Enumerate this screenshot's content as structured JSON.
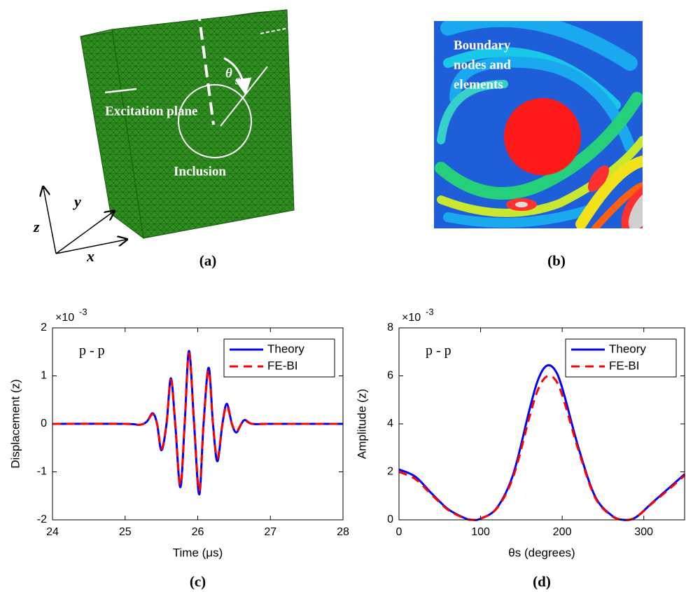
{
  "panel_a": {
    "caption": "(a)",
    "excitation": "Excitation plane",
    "inclusion": "Inclusion",
    "angle": "θ",
    "angle_sub": "s",
    "axis_x": "x",
    "axis_y": "y",
    "axis_z": "z"
  },
  "panel_b": {
    "caption": "(b)",
    "label_1": "Boundary",
    "label_2": "nodes and",
    "label_3": "elements"
  },
  "chart_data": [
    {
      "type": "line",
      "caption": "(c)",
      "annotation": "p - p",
      "exponent_base": "×10",
      "exponent_power": "-3",
      "xlabel": "Time (μs)",
      "ylabel": "Displacement (z)",
      "x": [
        24,
        25,
        25.2,
        25.3,
        25.38,
        25.44,
        25.5,
        25.57,
        25.63,
        25.69,
        25.76,
        25.82,
        25.88,
        25.95,
        26.02,
        26.08,
        26.15,
        26.21,
        26.27,
        26.34,
        26.4,
        26.47,
        26.53,
        26.6,
        26.65,
        26.75,
        27,
        28
      ],
      "series": [
        {
          "name": "Theory",
          "color": "#0000ff",
          "linestyle": "solid",
          "values": [
            0,
            0,
            -0.02,
            0.05,
            0.22,
            0,
            -0.55,
            0,
            0.95,
            0,
            -1.32,
            0,
            1.52,
            0,
            -1.47,
            0,
            1.17,
            0,
            -0.78,
            0,
            0.42,
            0,
            -0.18,
            0,
            0.08,
            0,
            0,
            0
          ]
        },
        {
          "name": "FE-BI",
          "color": "#ff0000",
          "linestyle": "dashed",
          "values": [
            0,
            0,
            -0.02,
            0.05,
            0.2,
            0,
            -0.52,
            0,
            0.92,
            0,
            -1.28,
            0,
            1.47,
            0,
            -1.4,
            0,
            1.12,
            0,
            -0.72,
            0,
            0.38,
            0,
            -0.16,
            0,
            0.07,
            0,
            0,
            0
          ]
        }
      ],
      "xlim": [
        24,
        28
      ],
      "xticks": [
        24,
        25,
        26,
        27,
        28
      ],
      "ylim": [
        -2,
        2
      ],
      "yticks": [
        -2,
        -1,
        0,
        1,
        2
      ],
      "grid": false,
      "legend": "upper right"
    },
    {
      "type": "line",
      "caption": "(d)",
      "annotation": "p - p",
      "exponent_base": "×10",
      "exponent_power": "-3",
      "xlabel": "θs (degrees)",
      "ylabel": "Amplitude (z)",
      "x": [
        0,
        20,
        40,
        60,
        80,
        90,
        100,
        120,
        140,
        160,
        170,
        180,
        190,
        200,
        220,
        240,
        260,
        275,
        290,
        310,
        330,
        350
      ],
      "series": [
        {
          "name": "Theory",
          "color": "#0000ff",
          "linestyle": "solid",
          "values": [
            2.1,
            1.8,
            1.1,
            0.45,
            0.08,
            0,
            0.05,
            0.5,
            1.9,
            4.6,
            5.8,
            6.4,
            6.3,
            5.5,
            3.0,
            1.0,
            0.2,
            0,
            0.1,
            0.7,
            1.3,
            1.9
          ]
        },
        {
          "name": "FE-BI",
          "color": "#ff0000",
          "linestyle": "dashed",
          "values": [
            2.0,
            1.7,
            1.05,
            0.42,
            0.07,
            0,
            0.05,
            0.48,
            1.8,
            4.3,
            5.4,
            5.95,
            5.9,
            5.2,
            2.9,
            0.95,
            0.18,
            0,
            0.1,
            0.68,
            1.25,
            1.85
          ]
        }
      ],
      "xlim": [
        0,
        350
      ],
      "xticks": [
        0,
        100,
        200,
        300
      ],
      "ylim": [
        0,
        8
      ],
      "yticks": [
        0,
        2,
        4,
        6,
        8
      ],
      "grid": false,
      "legend": "upper right"
    }
  ]
}
